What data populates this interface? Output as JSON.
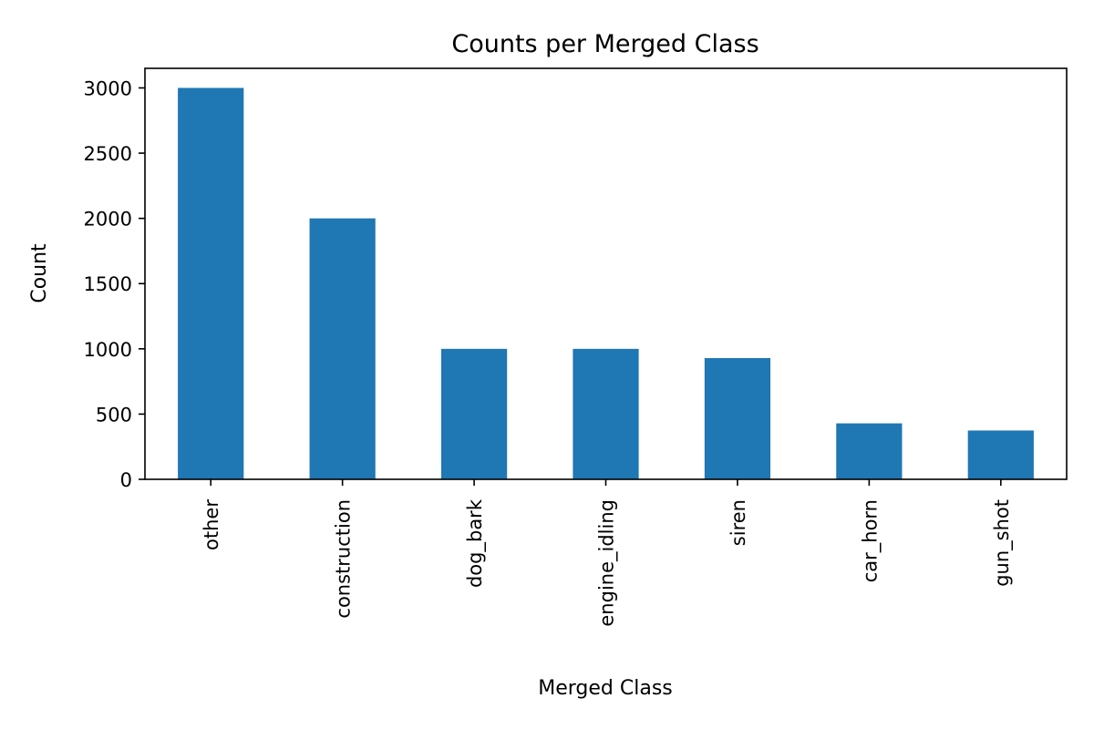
{
  "chart_data": {
    "type": "bar",
    "title": "Counts per Merged Class",
    "xlabel": "Merged Class",
    "ylabel": "Count",
    "categories": [
      "other",
      "construction",
      "dog_bark",
      "engine_idling",
      "siren",
      "car_horn",
      "gun_shot"
    ],
    "values": [
      3000,
      2000,
      1000,
      1000,
      929,
      429,
      374
    ],
    "yticks": [
      0,
      500,
      1000,
      1500,
      2000,
      2500,
      3000
    ],
    "ylim": [
      0,
      3150
    ],
    "grid": false,
    "legend": "none",
    "bar_color": "#1f77b4"
  }
}
